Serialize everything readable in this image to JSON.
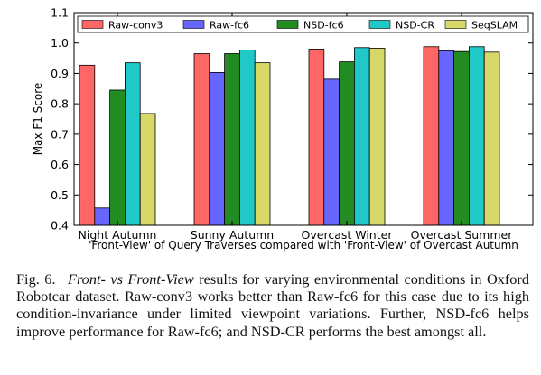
{
  "chart_data": {
    "type": "bar",
    "categories": [
      "Night Autumn",
      "Sunny Autumn",
      "Overcast Winter",
      "Overcast Summer"
    ],
    "series": [
      {
        "name": "Raw-conv3",
        "color": "#ff6666",
        "values": [
          0.927,
          0.965,
          0.98,
          0.988
        ]
      },
      {
        "name": "Raw-fc6",
        "color": "#6666ff",
        "values": [
          0.457,
          0.903,
          0.881,
          0.974
        ]
      },
      {
        "name": "NSD-fc6",
        "color": "#228b22",
        "values": [
          0.845,
          0.965,
          0.938,
          0.972
        ]
      },
      {
        "name": "NSD-CR",
        "color": "#20c8c8",
        "values": [
          0.935,
          0.977,
          0.985,
          0.988
        ]
      },
      {
        "name": "SeqSLAM",
        "color": "#d8d868",
        "values": [
          0.768,
          0.935,
          0.983,
          0.97
        ]
      }
    ],
    "xlabel": "'Front-View' of Query Traverses compared with 'Front-View' of Overcast Autumn",
    "ylabel": "Max F1 Score",
    "ylim": [
      0.4,
      1.1
    ],
    "yticks": [
      "0.4",
      "0.5",
      "0.6",
      "0.7",
      "0.8",
      "0.9",
      "1.0",
      "1.1"
    ],
    "legend_position": "top",
    "grid": false
  },
  "caption": {
    "fig_label": "Fig. 6.",
    "emph": "Front- vs Front-View",
    "text": "results for varying environmental conditions in Oxford Robotcar dataset. Raw-conv3 works better than Raw-fc6 for this case due to its high condition-invariance under limited viewpoint variations. Further, NSD-fc6 helps improve performance for Raw-fc6; and NSD-CR performs the best amongst all."
  }
}
